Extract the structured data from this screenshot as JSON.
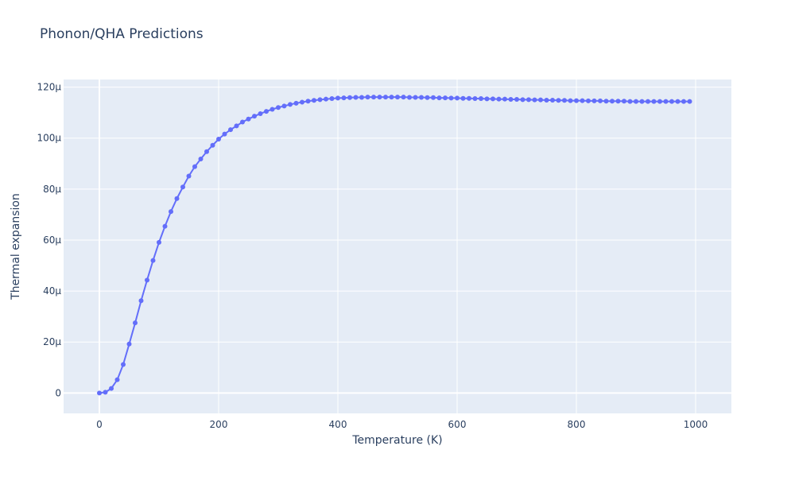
{
  "chart_data": {
    "type": "line",
    "title": "Phonon/QHA Predictions",
    "xlabel": "Temperature (K)",
    "ylabel": "Thermal expansion",
    "xlim": [
      -60,
      1060
    ],
    "ylim": [
      -8e-06,
      0.000123
    ],
    "x_ticks": [
      0,
      200,
      400,
      600,
      800,
      1000
    ],
    "x_tick_labels": [
      "0",
      "200",
      "400",
      "600",
      "800",
      "1000"
    ],
    "y_ticks": [
      0,
      2e-05,
      4e-05,
      6e-05,
      8e-05,
      0.0001,
      0.00012
    ],
    "y_tick_labels": [
      "0",
      "20µ",
      "40µ",
      "60µ",
      "80µ",
      "100µ",
      "120µ"
    ],
    "grid": true,
    "colors": {
      "series": "#636efa",
      "plot_bg": "#e5ecf6",
      "grid": "#ffffff",
      "text": "#2a3f5f"
    },
    "series": [
      {
        "mode": "lines+markers",
        "x": [
          0,
          10,
          20,
          30,
          40,
          50,
          60,
          70,
          80,
          90,
          100,
          110,
          120,
          130,
          140,
          150,
          160,
          170,
          180,
          190,
          200,
          210,
          220,
          230,
          240,
          250,
          260,
          270,
          280,
          290,
          300,
          310,
          320,
          330,
          340,
          350,
          360,
          370,
          380,
          390,
          400,
          410,
          420,
          430,
          440,
          450,
          460,
          470,
          480,
          490,
          500,
          510,
          520,
          530,
          540,
          550,
          560,
          570,
          580,
          590,
          600,
          610,
          620,
          630,
          640,
          650,
          660,
          670,
          680,
          690,
          700,
          710,
          720,
          730,
          740,
          750,
          760,
          770,
          780,
          790,
          800,
          810,
          820,
          830,
          840,
          850,
          860,
          870,
          880,
          890,
          900,
          910,
          920,
          930,
          940,
          950,
          960,
          970,
          980,
          990
        ],
        "y": [
          0,
          3e-07,
          1.8e-06,
          5.2e-06,
          1.12e-05,
          1.92e-05,
          2.75e-05,
          3.62e-05,
          4.43e-05,
          5.2e-05,
          5.91e-05,
          6.54e-05,
          7.12e-05,
          7.63e-05,
          8.08e-05,
          8.51e-05,
          8.88e-05,
          9.18e-05,
          9.47e-05,
          9.72e-05,
          9.96e-05,
          0.0001016,
          0.0001033,
          0.0001048,
          0.0001063,
          0.0001075,
          0.0001086,
          0.0001096,
          0.0001105,
          0.0001113,
          0.000112,
          0.0001126,
          0.0001132,
          0.0001137,
          0.0001141,
          0.0001145,
          0.0001148,
          0.0001151,
          0.0001153,
          0.0001155,
          0.0001157,
          0.0001158,
          0.0001159,
          0.000116,
          0.000116,
          0.0001161,
          0.0001161,
          0.0001161,
          0.0001161,
          0.0001161,
          0.0001161,
          0.0001161,
          0.000116,
          0.000116,
          0.000116,
          0.0001159,
          0.0001159,
          0.0001158,
          0.0001158,
          0.0001157,
          0.0001157,
          0.0001156,
          0.0001156,
          0.0001155,
          0.0001155,
          0.0001154,
          0.0001154,
          0.0001153,
          0.0001153,
          0.0001152,
          0.0001152,
          0.0001151,
          0.0001151,
          0.000115,
          0.000115,
          0.0001149,
          0.0001149,
          0.0001148,
          0.0001148,
          0.0001147,
          0.0001147,
          0.0001147,
          0.0001146,
          0.0001146,
          0.0001146,
          0.0001145,
          0.0001145,
          0.0001145,
          0.0001145,
          0.0001144,
          0.0001144,
          0.0001144,
          0.0001144,
          0.0001144,
          0.0001144,
          0.0001144,
          0.0001144,
          0.0001144,
          0.0001144,
          0.0001144
        ]
      }
    ]
  }
}
